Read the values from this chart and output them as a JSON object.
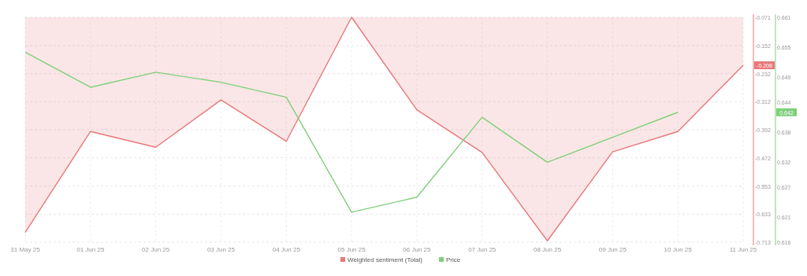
{
  "chart_data": {
    "type": "line",
    "categories": [
      "31 May 25",
      "01 Jun 25",
      "02 Jun 25",
      "03 Jun 25",
      "04 Jun 25",
      "05 Jun 25",
      "06 Jun 25",
      "07 Jun 25",
      "08 Jun 25",
      "09 Jun 25",
      "10 Jun 25",
      "11 Jun 25"
    ],
    "series": [
      {
        "name": "Weighted sentiment (Total)",
        "type": "area",
        "color": "#e8777a",
        "values": [
          -0.685,
          -0.397,
          -0.442,
          -0.307,
          -0.425,
          -0.071,
          -0.335,
          -0.457,
          -0.709,
          -0.455,
          -0.397,
          -0.208
        ]
      },
      {
        "name": "Price",
        "axis": "y2",
        "color": "#7fcf7a",
        "values": [
          0.654,
          0.647,
          0.65,
          0.648,
          0.645,
          0.622,
          0.625,
          0.641,
          0.632,
          0.637,
          0.642,
          null
        ]
      }
    ],
    "ylim": [
      -0.713,
      -0.071
    ],
    "yticks": [
      -0.071,
      -0.152,
      -0.232,
      -0.312,
      -0.392,
      -0.472,
      -0.553,
      -0.633,
      -0.713
    ],
    "y2lim": [
      0.616,
      0.661
    ],
    "y2ticks": [
      0.661,
      0.655,
      0.649,
      0.644,
      0.638,
      0.632,
      0.627,
      0.621,
      0.616
    ],
    "annotations": [
      "-0.208",
      "0.642"
    ],
    "grid": true,
    "legend": "bottom"
  }
}
